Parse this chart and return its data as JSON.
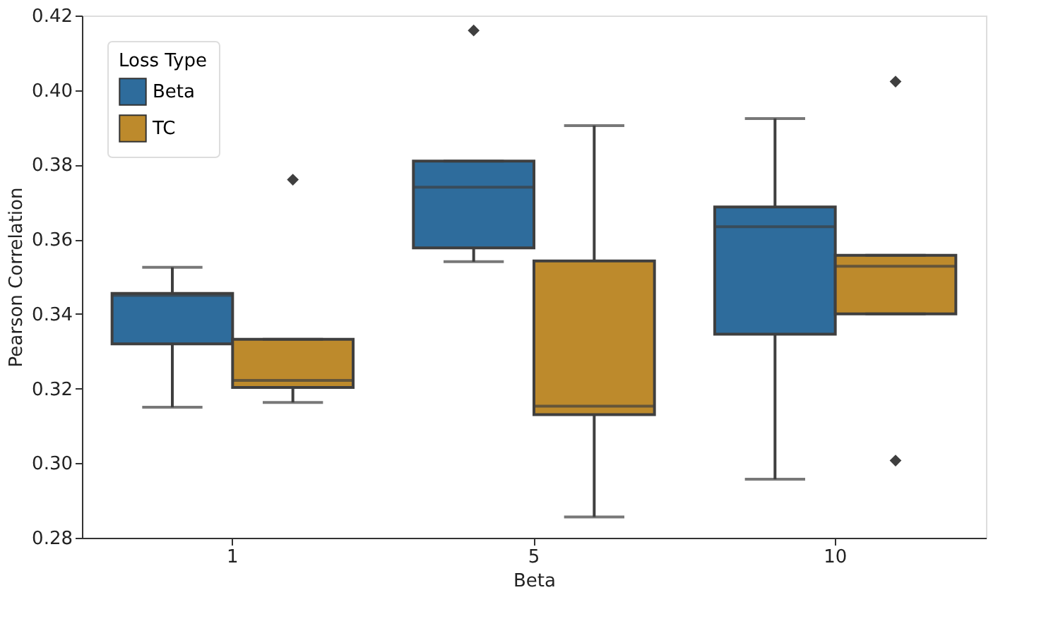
{
  "chart_data": {
    "type": "box",
    "xlabel": "Beta",
    "ylabel": "Pearson Correlation",
    "legend_title": "Loss Type",
    "legend": "top left",
    "grid": false,
    "categories": [
      "1",
      "5",
      "10"
    ],
    "ylim": [
      0.28,
      0.42
    ],
    "yticks": [
      0.28,
      {
        "value": 0.3,
        "label": "0.30"
      },
      0.32,
      0.34,
      0.36,
      0.38,
      {
        "value": 0.4,
        "label": "0.40"
      },
      0.42
    ],
    "series": [
      {
        "name": "Beta",
        "color": "#2e6c9c",
        "boxes": [
          {
            "low": 0.315,
            "q1": 0.332,
            "median": 0.345,
            "q3": 0.3455,
            "high": 0.3525
          },
          {
            "low": 0.354,
            "q1": 0.3577,
            "median": 0.374,
            "q3": 0.381,
            "high": 0.381,
            "outliers": [
              0.416
            ]
          },
          {
            "low": 0.2957,
            "q1": 0.3346,
            "median": 0.3634,
            "q3": 0.3687,
            "high": 0.3924
          }
        ]
      },
      {
        "name": "TC",
        "color": "#bd8a2c",
        "boxes": [
          {
            "low": 0.3163,
            "q1": 0.3203,
            "median": 0.3222,
            "q3": 0.3332,
            "high": 0.3332,
            "outliers": [
              0.376
            ]
          },
          {
            "low": 0.2856,
            "q1": 0.313,
            "median": 0.3153,
            "q3": 0.3542,
            "high": 0.3905
          },
          {
            "low": 0.34,
            "q1": 0.34,
            "median": 0.3528,
            "q3": 0.3557,
            "high": 0.3557,
            "outliers": [
              0.4023,
              0.3007
            ]
          }
        ]
      }
    ]
  }
}
